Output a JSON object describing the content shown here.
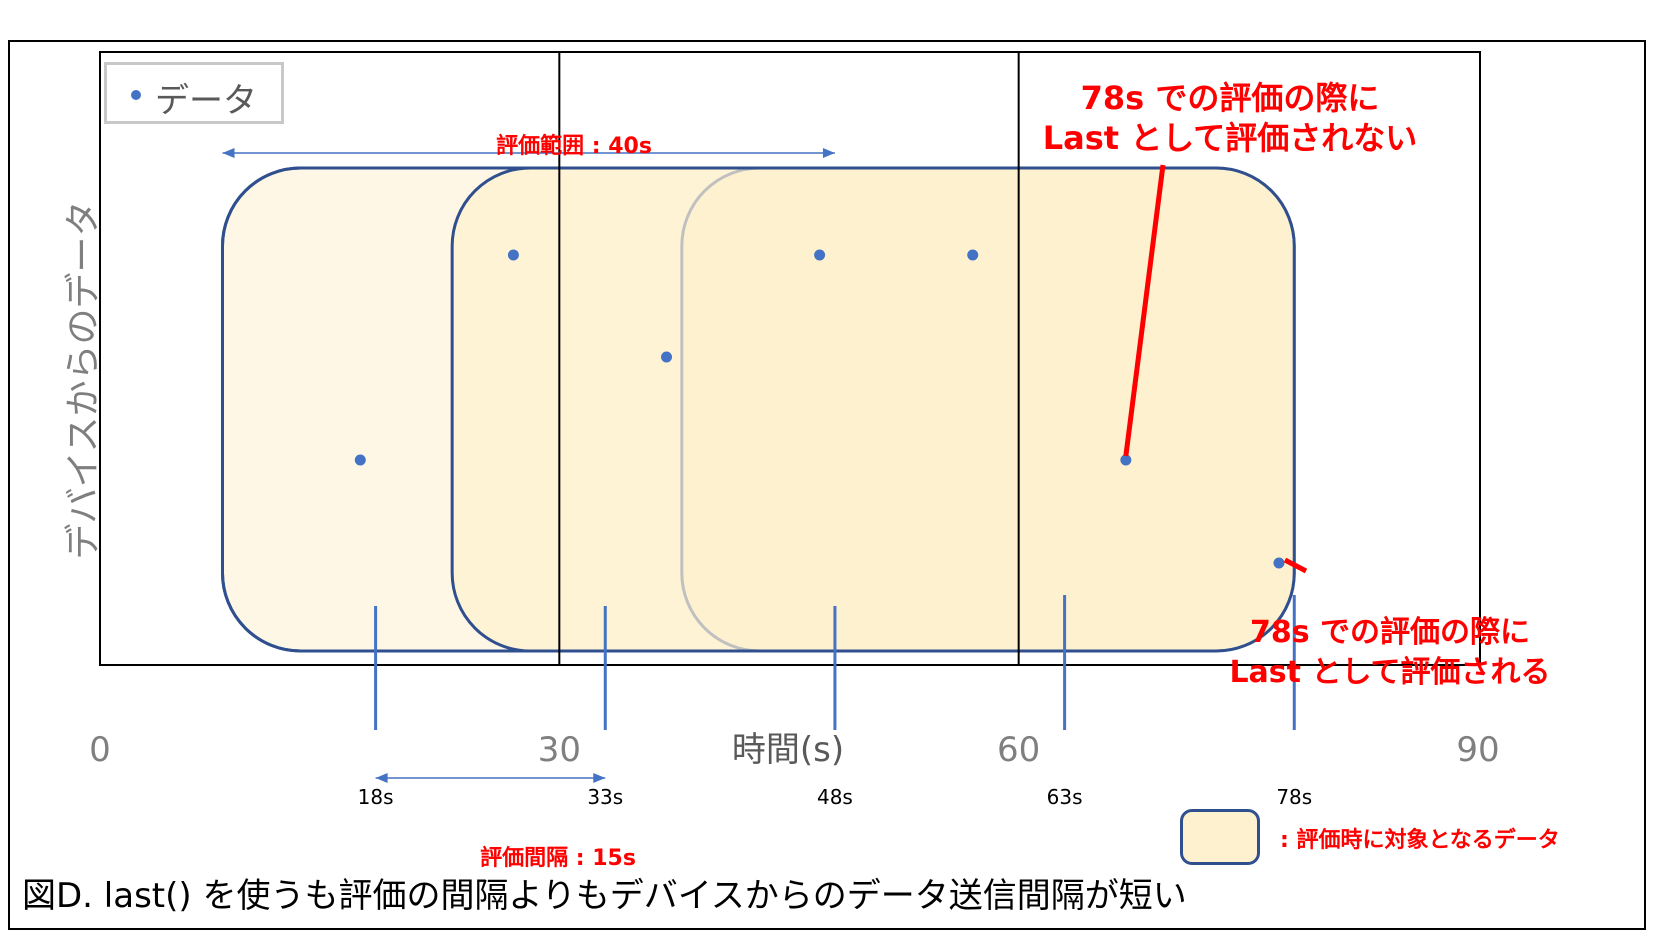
{
  "chart_data": {
    "type": "scatter",
    "title": "",
    "xlabel": "時間(s)",
    "ylabel": "デバイスからのデータ",
    "xlim": [
      0,
      90
    ],
    "x_ticks": [
      "0",
      "30",
      "60",
      "90"
    ],
    "x_tick_values": [
      0,
      30,
      60,
      90
    ],
    "vertical_gridlines": [
      30,
      60
    ],
    "legend": {
      "label": "データ",
      "position": "top-left"
    },
    "series": [
      {
        "name": "データ",
        "color": "#4472c4",
        "points": [
          {
            "x": 17,
            "y": 2
          },
          {
            "x": 27,
            "y": 4
          },
          {
            "x": 37,
            "y": 3
          },
          {
            "x": 47,
            "y": 4
          },
          {
            "x": 57,
            "y": 4
          },
          {
            "x": 67,
            "y": 2
          },
          {
            "x": 77,
            "y": 1
          }
        ]
      }
    ],
    "evaluation_points": [
      {
        "x": 18,
        "label": "18s"
      },
      {
        "x": 33,
        "label": "33s"
      },
      {
        "x": 48,
        "label": "48s"
      },
      {
        "x": 63,
        "label": "63s"
      },
      {
        "x": 78,
        "label": "78s"
      }
    ],
    "evaluation_windows": [
      {
        "start": 8,
        "end": 48
      },
      {
        "start": 23,
        "end": 63
      },
      {
        "start": 38,
        "end": 78
      }
    ],
    "range_annotation": {
      "label": "評価範囲 : 40s",
      "start": 8,
      "end": 48
    },
    "interval_annotation": {
      "label": "評価間隔 : 15s",
      "start": 18,
      "end": 33
    },
    "annotations": [
      {
        "lines": [
          "78s での評価の際に",
          "Last として評価されない"
        ],
        "target_x": 67
      },
      {
        "lines": [
          "78s での評価の際に",
          "Last として評価される"
        ],
        "target_x": 77
      }
    ],
    "window_key": ": 評価時に対象となるデータ"
  },
  "caption": "図D. last() を使うも評価の間隔よりもデバイスからのデータ送信間隔が短い",
  "colors": {
    "point": "#4472c4",
    "window_fill": "#fdf1cf",
    "window_stroke": "#2f4f8f",
    "eval_line": "#4472c4",
    "annotation": "#ff0000"
  }
}
